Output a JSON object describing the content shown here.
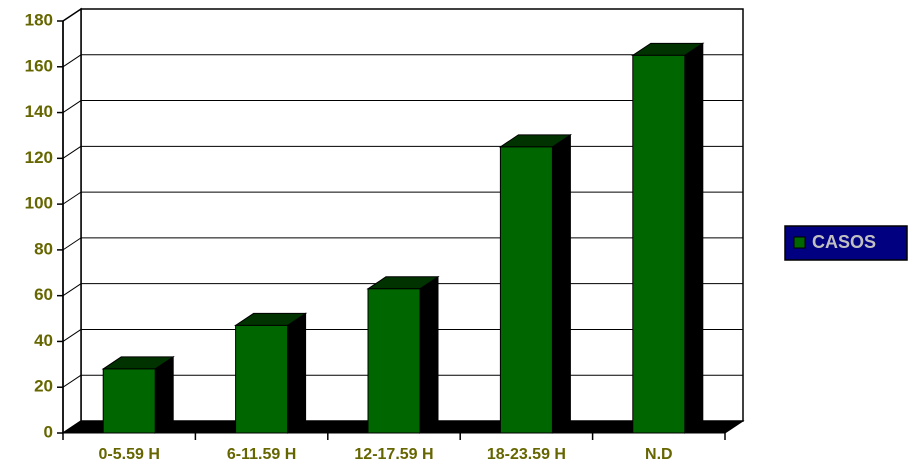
{
  "chart_data": {
    "type": "bar3d",
    "categories": [
      "0-5.59 H",
      "6-11.59 H",
      "12-17.59 H",
      "18-23.59 H",
      "N.D"
    ],
    "series": [
      {
        "name": "CASOS",
        "color": "#006600",
        "values": [
          28,
          47,
          63,
          125,
          165
        ]
      }
    ],
    "ylim": [
      0,
      180
    ],
    "yticks": [
      0,
      20,
      40,
      60,
      80,
      100,
      120,
      140,
      160,
      180
    ],
    "grid": true,
    "legend": "right"
  }
}
